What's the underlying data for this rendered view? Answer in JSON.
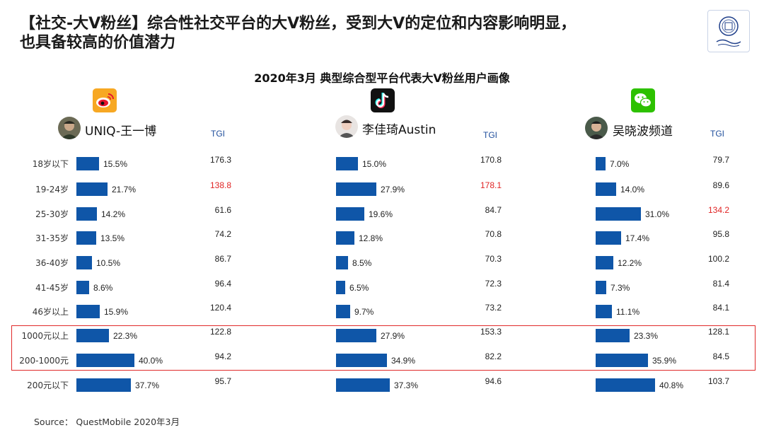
{
  "header": {
    "title_line1": "【社交-大V粉丝】综合性社交平台的大V粉丝，受到大V的定位和内容影响明显，",
    "title_line2": "也具备较高的价值潜力"
  },
  "logo": {
    "icon": "university-seal-icon",
    "accent": "#1f3f8a"
  },
  "source": "Source： QuestMobile 2020年3月",
  "colors": {
    "bar": "#0f56a8",
    "highlight": "#e02424",
    "tgi_header": "#1f4e9c"
  },
  "chart_data": {
    "type": "bar",
    "title": "2020年3月 典型综合型平台代表大V粉丝用户画像",
    "categories": [
      "18岁以下",
      "19-24岁",
      "25-30岁",
      "31-35岁",
      "36-40岁",
      "41-45岁",
      "46岁以上",
      "1000元以上",
      "200-1000元",
      "200元以下"
    ],
    "tgi_header": "TGI",
    "highlighted_rows": [
      "1000元以上",
      "200-1000元"
    ],
    "panels": [
      {
        "platform_icon": "weibo-icon",
        "kol_name": "UNIQ-王一博",
        "values": [
          15.5,
          21.7,
          14.2,
          13.5,
          10.5,
          8.6,
          15.9,
          22.3,
          40.0,
          37.7
        ],
        "value_labels": [
          "15.5%",
          "21.7%",
          "14.2%",
          "13.5%",
          "10.5%",
          "8.6%",
          "15.9%",
          "22.3%",
          "40.0%",
          "37.7%"
        ],
        "tgi": [
          "176.3",
          "138.8",
          "61.6",
          "74.2",
          "86.7",
          "96.4",
          "120.4",
          "122.8",
          "94.2",
          "95.7"
        ],
        "tgi_highlight": [
          1
        ]
      },
      {
        "platform_icon": "douyin-icon",
        "kol_name": "李佳琦Austin",
        "values": [
          15.0,
          27.9,
          19.6,
          12.8,
          8.5,
          6.5,
          9.7,
          27.9,
          34.9,
          37.3
        ],
        "value_labels": [
          "15.0%",
          "27.9%",
          "19.6%",
          "12.8%",
          "8.5%",
          "6.5%",
          "9.7%",
          "27.9%",
          "34.9%",
          "37.3%"
        ],
        "tgi": [
          "170.8",
          "178.1",
          "84.7",
          "70.8",
          "70.3",
          "72.3",
          "73.2",
          "153.3",
          "82.2",
          "94.6"
        ],
        "tgi_highlight": [
          1
        ]
      },
      {
        "platform_icon": "wechat-icon",
        "kol_name": "吴晓波频道",
        "values": [
          7.0,
          14.0,
          31.0,
          17.4,
          12.2,
          7.3,
          11.1,
          23.3,
          35.9,
          40.8
        ],
        "value_labels": [
          "7.0%",
          "14.0%",
          "31.0%",
          "17.4%",
          "12.2%",
          "7.3%",
          "11.1%",
          "23.3%",
          "35.9%",
          "40.8%"
        ],
        "tgi": [
          "79.7",
          "89.6",
          "134.2",
          "95.8",
          "100.2",
          "81.4",
          "84.1",
          "128.1",
          "84.5",
          "103.7"
        ],
        "tgi_highlight": [
          2
        ]
      }
    ]
  }
}
